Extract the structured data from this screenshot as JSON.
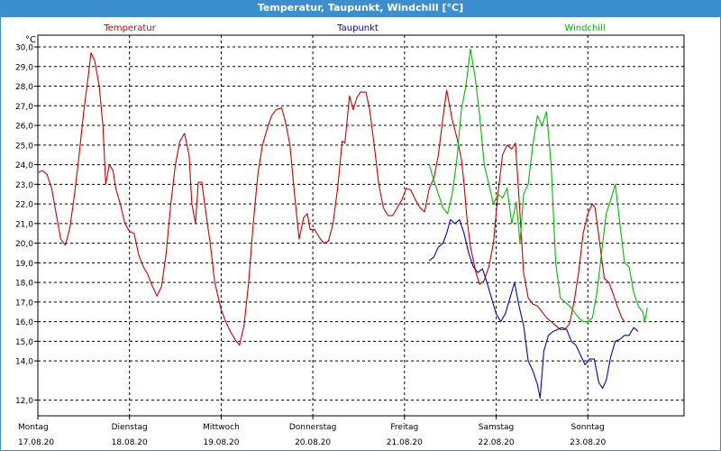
{
  "window": {
    "title": "Temperatur, Taupunkt, Windchill [°C]"
  },
  "chart_data": {
    "type": "line",
    "unit_label": "°C",
    "title": "Temperatur, Taupunkt, Windchill [°C]",
    "ylim": [
      11.2,
      30.6
    ],
    "xlim": [
      0,
      7.05
    ],
    "grid": true,
    "legend_placement": "top",
    "y_ticks": [
      {
        "value": 12.0,
        "label": "12,0"
      },
      {
        "value": 14.0,
        "label": "14,0"
      },
      {
        "value": 15.0,
        "label": "15,0"
      },
      {
        "value": 16.0,
        "label": "16,0"
      },
      {
        "value": 17.0,
        "label": "17,0"
      },
      {
        "value": 18.0,
        "label": "18,0"
      },
      {
        "value": 19.0,
        "label": "19,0"
      },
      {
        "value": 20.0,
        "label": "20,0"
      },
      {
        "value": 21.0,
        "label": "21,0"
      },
      {
        "value": 22.0,
        "label": "22,0"
      },
      {
        "value": 23.0,
        "label": "23,0"
      },
      {
        "value": 24.0,
        "label": "24,0"
      },
      {
        "value": 25.0,
        "label": "25,0"
      },
      {
        "value": 26.0,
        "label": "26,0"
      },
      {
        "value": 27.0,
        "label": "27,0"
      },
      {
        "value": 28.0,
        "label": "28,0"
      },
      {
        "value": 29.0,
        "label": "29,0"
      },
      {
        "value": 30.0,
        "label": "30,0"
      }
    ],
    "x_ticks": [
      {
        "value": 0,
        "day": "Montag",
        "date": "17.08.20"
      },
      {
        "value": 1,
        "day": "Dienstag",
        "date": "18.08.20"
      },
      {
        "value": 2,
        "day": "Mittwoch",
        "date": "19.08.20"
      },
      {
        "value": 3,
        "day": "Donnerstag",
        "date": "20.08.20"
      },
      {
        "value": 4,
        "day": "Freitag",
        "date": "21.08.20"
      },
      {
        "value": 5,
        "day": "Samstag",
        "date": "22.08.20"
      },
      {
        "value": 6,
        "day": "Sonntag",
        "date": "23.08.20"
      }
    ],
    "series": [
      {
        "name": "Temperatur",
        "color": "#cc0000",
        "points": [
          [
            0.0,
            23.6
          ],
          [
            0.05,
            23.7
          ],
          [
            0.1,
            23.5
          ],
          [
            0.15,
            22.8
          ],
          [
            0.2,
            21.5
          ],
          [
            0.25,
            20.2
          ],
          [
            0.3,
            19.9
          ],
          [
            0.35,
            20.8
          ],
          [
            0.4,
            22.5
          ],
          [
            0.45,
            24.5
          ],
          [
            0.5,
            26.7
          ],
          [
            0.55,
            28.5
          ],
          [
            0.58,
            29.7
          ],
          [
            0.62,
            29.3
          ],
          [
            0.67,
            28.0
          ],
          [
            0.71,
            26.0
          ],
          [
            0.74,
            23.0
          ],
          [
            0.78,
            24.0
          ],
          [
            0.82,
            23.7
          ],
          [
            0.85,
            22.8
          ],
          [
            0.9,
            22.0
          ],
          [
            0.95,
            21.0
          ],
          [
            1.0,
            20.6
          ],
          [
            1.05,
            20.5
          ],
          [
            1.1,
            19.4
          ],
          [
            1.15,
            18.8
          ],
          [
            1.2,
            18.4
          ],
          [
            1.25,
            17.8
          ],
          [
            1.3,
            17.3
          ],
          [
            1.35,
            17.8
          ],
          [
            1.4,
            19.5
          ],
          [
            1.45,
            22.0
          ],
          [
            1.5,
            24.0
          ],
          [
            1.55,
            25.2
          ],
          [
            1.6,
            25.6
          ],
          [
            1.65,
            24.5
          ],
          [
            1.68,
            22.0
          ],
          [
            1.72,
            21.0
          ],
          [
            1.75,
            23.1
          ],
          [
            1.79,
            23.1
          ],
          [
            1.82,
            22.0
          ],
          [
            1.88,
            20.0
          ],
          [
            1.93,
            18.0
          ],
          [
            2.0,
            16.6
          ],
          [
            2.05,
            16.0
          ],
          [
            2.1,
            15.5
          ],
          [
            2.15,
            15.1
          ],
          [
            2.2,
            14.8
          ],
          [
            2.25,
            15.8
          ],
          [
            2.3,
            18.0
          ],
          [
            2.35,
            21.0
          ],
          [
            2.4,
            23.5
          ],
          [
            2.45,
            25.0
          ],
          [
            2.5,
            25.8
          ],
          [
            2.55,
            26.5
          ],
          [
            2.6,
            26.8
          ],
          [
            2.66,
            26.9
          ],
          [
            2.7,
            26.2
          ],
          [
            2.75,
            25.0
          ],
          [
            2.8,
            22.5
          ],
          [
            2.85,
            20.2
          ],
          [
            2.9,
            21.3
          ],
          [
            2.94,
            21.5
          ],
          [
            2.97,
            20.7
          ],
          [
            3.02,
            20.7
          ],
          [
            3.07,
            20.3
          ],
          [
            3.12,
            20.0
          ],
          [
            3.17,
            20.1
          ],
          [
            3.22,
            21.0
          ],
          [
            3.27,
            22.8
          ],
          [
            3.32,
            25.2
          ],
          [
            3.35,
            25.1
          ],
          [
            3.4,
            27.5
          ],
          [
            3.44,
            26.8
          ],
          [
            3.48,
            27.4
          ],
          [
            3.52,
            27.7
          ],
          [
            3.58,
            27.7
          ],
          [
            3.62,
            26.8
          ],
          [
            3.67,
            25.0
          ],
          [
            3.72,
            23.0
          ],
          [
            3.77,
            21.8
          ],
          [
            3.82,
            21.4
          ],
          [
            3.87,
            21.4
          ],
          [
            3.92,
            21.8
          ],
          [
            3.97,
            22.2
          ],
          [
            4.02,
            22.8
          ],
          [
            4.07,
            22.7
          ],
          [
            4.12,
            22.2
          ],
          [
            4.17,
            21.8
          ],
          [
            4.22,
            21.6
          ],
          [
            4.27,
            22.8
          ],
          [
            4.32,
            23.3
          ],
          [
            4.37,
            24.5
          ],
          [
            4.42,
            26.4
          ],
          [
            4.46,
            27.8
          ],
          [
            4.52,
            26.3
          ],
          [
            4.57,
            25.4
          ],
          [
            4.62,
            24.3
          ],
          [
            4.65,
            23.0
          ],
          [
            4.68,
            21.3
          ],
          [
            4.72,
            19.8
          ],
          [
            4.78,
            18.5
          ],
          [
            4.82,
            17.9
          ],
          [
            4.87,
            18.1
          ],
          [
            4.92,
            18.8
          ],
          [
            4.97,
            20.0
          ],
          [
            5.02,
            22.5
          ],
          [
            5.07,
            24.5
          ],
          [
            5.12,
            25.0
          ],
          [
            5.17,
            24.8
          ],
          [
            5.21,
            25.1
          ],
          [
            5.24,
            23.0
          ],
          [
            5.3,
            18.5
          ],
          [
            5.35,
            17.2
          ],
          [
            5.4,
            16.9
          ],
          [
            5.45,
            16.8
          ],
          [
            5.5,
            16.5
          ],
          [
            5.55,
            16.2
          ],
          [
            5.6,
            16.0
          ],
          [
            5.65,
            15.8
          ],
          [
            5.7,
            15.6
          ],
          [
            5.75,
            15.6
          ],
          [
            5.8,
            15.9
          ],
          [
            5.85,
            17.0
          ],
          [
            5.9,
            18.5
          ],
          [
            5.95,
            20.5
          ],
          [
            6.0,
            21.5
          ],
          [
            6.05,
            22.0
          ],
          [
            6.08,
            21.8
          ],
          [
            6.13,
            20.0
          ],
          [
            6.18,
            18.2
          ],
          [
            6.23,
            18.0
          ],
          [
            6.27,
            17.5
          ],
          [
            6.32,
            16.8
          ],
          [
            6.37,
            16.2
          ],
          [
            6.4,
            16.0
          ]
        ]
      },
      {
        "name": "Taupunkt",
        "color": "#0000cc",
        "points": [
          [
            4.27,
            19.1
          ],
          [
            4.32,
            19.3
          ],
          [
            4.37,
            19.8
          ],
          [
            4.42,
            20.0
          ],
          [
            4.46,
            20.5
          ],
          [
            4.5,
            21.2
          ],
          [
            4.55,
            21.0
          ],
          [
            4.6,
            21.2
          ],
          [
            4.65,
            20.5
          ],
          [
            4.7,
            19.5
          ],
          [
            4.75,
            18.8
          ],
          [
            4.8,
            18.5
          ],
          [
            4.85,
            18.7
          ],
          [
            4.9,
            18.0
          ],
          [
            4.95,
            17.2
          ],
          [
            5.0,
            16.4
          ],
          [
            5.05,
            16.0
          ],
          [
            5.1,
            16.4
          ],
          [
            5.15,
            17.2
          ],
          [
            5.2,
            18.0
          ],
          [
            5.25,
            16.8
          ],
          [
            5.3,
            15.8
          ],
          [
            5.35,
            14.0
          ],
          [
            5.4,
            13.5
          ],
          [
            5.45,
            12.8
          ],
          [
            5.48,
            12.1
          ],
          [
            5.52,
            14.5
          ],
          [
            5.57,
            15.3
          ],
          [
            5.62,
            15.5
          ],
          [
            5.67,
            15.6
          ],
          [
            5.72,
            15.7
          ],
          [
            5.77,
            15.6
          ],
          [
            5.82,
            15.0
          ],
          [
            5.87,
            14.8
          ],
          [
            5.92,
            14.3
          ],
          [
            5.97,
            13.8
          ],
          [
            6.02,
            14.1
          ],
          [
            6.07,
            14.1
          ],
          [
            6.12,
            12.9
          ],
          [
            6.16,
            12.6
          ],
          [
            6.2,
            13.0
          ],
          [
            6.25,
            14.2
          ],
          [
            6.3,
            15.0
          ],
          [
            6.35,
            15.1
          ],
          [
            6.4,
            15.3
          ],
          [
            6.45,
            15.3
          ],
          [
            6.5,
            15.7
          ],
          [
            6.55,
            15.5
          ]
        ]
      },
      {
        "name": "Windchill",
        "color": "#00bb00",
        "points": [
          [
            4.27,
            24.0
          ],
          [
            4.32,
            23.2
          ],
          [
            4.37,
            22.5
          ],
          [
            4.42,
            21.8
          ],
          [
            4.47,
            21.5
          ],
          [
            4.52,
            22.5
          ],
          [
            4.57,
            24.2
          ],
          [
            4.62,
            26.8
          ],
          [
            4.67,
            28.0
          ],
          [
            4.72,
            29.9
          ],
          [
            4.77,
            28.5
          ],
          [
            4.82,
            26.5
          ],
          [
            4.87,
            24.0
          ],
          [
            4.92,
            23.0
          ],
          [
            4.97,
            22.0
          ],
          [
            5.02,
            22.5
          ],
          [
            5.07,
            22.3
          ],
          [
            5.12,
            22.8
          ],
          [
            5.17,
            21.0
          ],
          [
            5.22,
            22.1
          ],
          [
            5.26,
            20.0
          ],
          [
            5.3,
            22.5
          ],
          [
            5.35,
            23.0
          ],
          [
            5.4,
            25.0
          ],
          [
            5.45,
            26.5
          ],
          [
            5.5,
            26.0
          ],
          [
            5.55,
            26.7
          ],
          [
            5.6,
            24.0
          ],
          [
            5.65,
            19.0
          ],
          [
            5.7,
            17.2
          ],
          [
            5.75,
            17.0
          ],
          [
            5.8,
            16.8
          ],
          [
            5.85,
            16.5
          ],
          [
            5.9,
            16.2
          ],
          [
            5.95,
            16.0
          ],
          [
            6.0,
            16.0
          ],
          [
            6.05,
            16.2
          ],
          [
            6.1,
            17.5
          ],
          [
            6.15,
            19.5
          ],
          [
            6.2,
            21.5
          ],
          [
            6.25,
            22.2
          ],
          [
            6.3,
            23.0
          ],
          [
            6.35,
            21.0
          ],
          [
            6.4,
            19.0
          ],
          [
            6.45,
            18.8
          ],
          [
            6.5,
            17.5
          ],
          [
            6.55,
            16.8
          ],
          [
            6.6,
            16.5
          ],
          [
            6.62,
            16.0
          ],
          [
            6.65,
            16.7
          ]
        ]
      }
    ]
  }
}
